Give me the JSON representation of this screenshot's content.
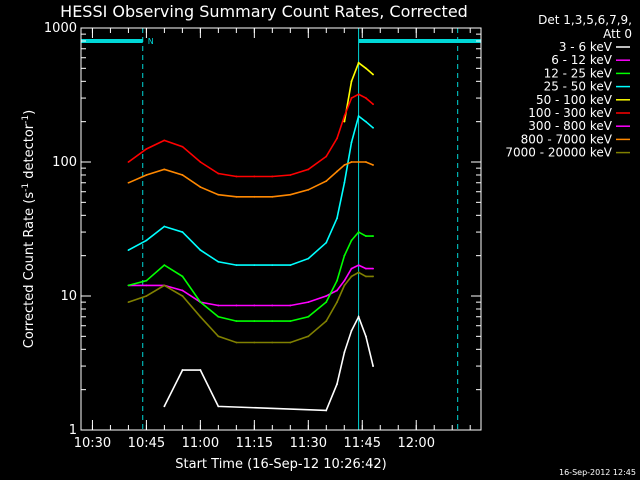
{
  "chart_data": {
    "type": "line",
    "title": "HESSI Observing Summary Count Rates, Corrected",
    "xlabel": "Start Time (16-Sep-12 10:26:42)",
    "ylabel_parts": [
      "Corrected Count Rate (s",
      "-1",
      " detector",
      "-1",
      ")"
    ],
    "yscale": "log",
    "ylim": [
      1,
      1000
    ],
    "xlim": [
      10.447,
      12.3
    ],
    "y_ticks": [
      {
        "value": 1,
        "label": "1"
      },
      {
        "value": 10,
        "label": "10"
      },
      {
        "value": 100,
        "label": "100"
      },
      {
        "value": 1000,
        "label": "1000"
      }
    ],
    "x_ticks": [
      {
        "value": 10.5,
        "label": "10:30"
      },
      {
        "value": 10.75,
        "label": "10:45"
      },
      {
        "value": 11.0,
        "label": "11:00"
      },
      {
        "value": 11.25,
        "label": "11:15"
      },
      {
        "value": 11.5,
        "label": "11:30"
      },
      {
        "value": 11.75,
        "label": "11:45"
      },
      {
        "value": 12.0,
        "label": "12:00"
      }
    ],
    "legend_header": [
      "Det 1,3,5,6,7,9,",
      "Att 0"
    ],
    "legend_position": "right",
    "footer_date": "16-Sep-2012 12:45",
    "night_marker_label": "N",
    "colors": {
      "background": "#000000",
      "axes": "#ffffff",
      "night": "#00d8d8"
    },
    "night_bars": [
      [
        10.447,
        10.733
      ],
      [
        11.733,
        12.3
      ]
    ],
    "vertical_markers": [
      10.733,
      11.733,
      12.192
    ],
    "x": [
      10.667,
      10.75,
      10.833,
      10.917,
      11.0,
      11.083,
      11.167,
      11.25,
      11.333,
      11.417,
      11.5,
      11.583,
      11.633,
      11.667,
      11.7,
      11.733,
      11.767,
      11.8
    ],
    "series": [
      {
        "name": "3 - 6 keV",
        "color": "#ffffff",
        "values": [
          null,
          null,
          1.5,
          2.8,
          2.8,
          1.5,
          null,
          null,
          null,
          null,
          null,
          1.4,
          2.2,
          3.8,
          5.5,
          7,
          5,
          3
        ]
      },
      {
        "name": "6 - 12 keV",
        "color": "#ff00ff",
        "values": [
          12,
          12,
          12,
          11,
          9,
          8.5,
          8.5,
          8.5,
          8.5,
          8.5,
          9,
          10,
          11,
          13,
          16,
          17,
          16,
          16
        ]
      },
      {
        "name": "12 - 25 keV",
        "color": "#00ff00",
        "values": [
          12,
          13,
          17,
          14,
          9,
          7,
          6.5,
          6.5,
          6.5,
          6.5,
          7,
          9,
          13,
          20,
          26,
          30,
          28,
          28
        ]
      },
      {
        "name": "25 - 50 keV",
        "color": "#00ffff",
        "values": [
          22,
          26,
          33,
          30,
          22,
          18,
          17,
          17,
          17,
          17,
          19,
          25,
          38,
          70,
          140,
          220,
          200,
          180
        ]
      },
      {
        "name": "50 - 100 keV",
        "color": "#ffff00",
        "values": [
          null,
          null,
          null,
          null,
          null,
          null,
          null,
          null,
          null,
          null,
          null,
          null,
          null,
          200,
          400,
          550,
          500,
          450
        ]
      },
      {
        "name": "100 - 300 keV",
        "color": "#ff0000",
        "values": [
          100,
          125,
          145,
          130,
          100,
          82,
          78,
          78,
          78,
          80,
          88,
          110,
          150,
          220,
          300,
          320,
          300,
          270
        ]
      },
      {
        "name": "300 - 800 keV",
        "color": "#ff00ff",
        "values": [
          null,
          null,
          null,
          null,
          null,
          null,
          null,
          null,
          null,
          null,
          null,
          null,
          null,
          null,
          null,
          null,
          null,
          null
        ]
      },
      {
        "name": "800 - 7000 keV",
        "color": "#ff8800",
        "values": [
          70,
          80,
          88,
          80,
          65,
          57,
          55,
          55,
          55,
          57,
          62,
          72,
          85,
          95,
          100,
          100,
          100,
          95
        ]
      },
      {
        "name": "7000 - 20000 keV",
        "color": "#808000",
        "values": [
          9,
          10,
          12,
          10,
          7,
          5,
          4.5,
          4.5,
          4.5,
          4.5,
          5,
          6.5,
          9,
          12,
          14,
          15,
          14,
          14
        ]
      }
    ]
  }
}
